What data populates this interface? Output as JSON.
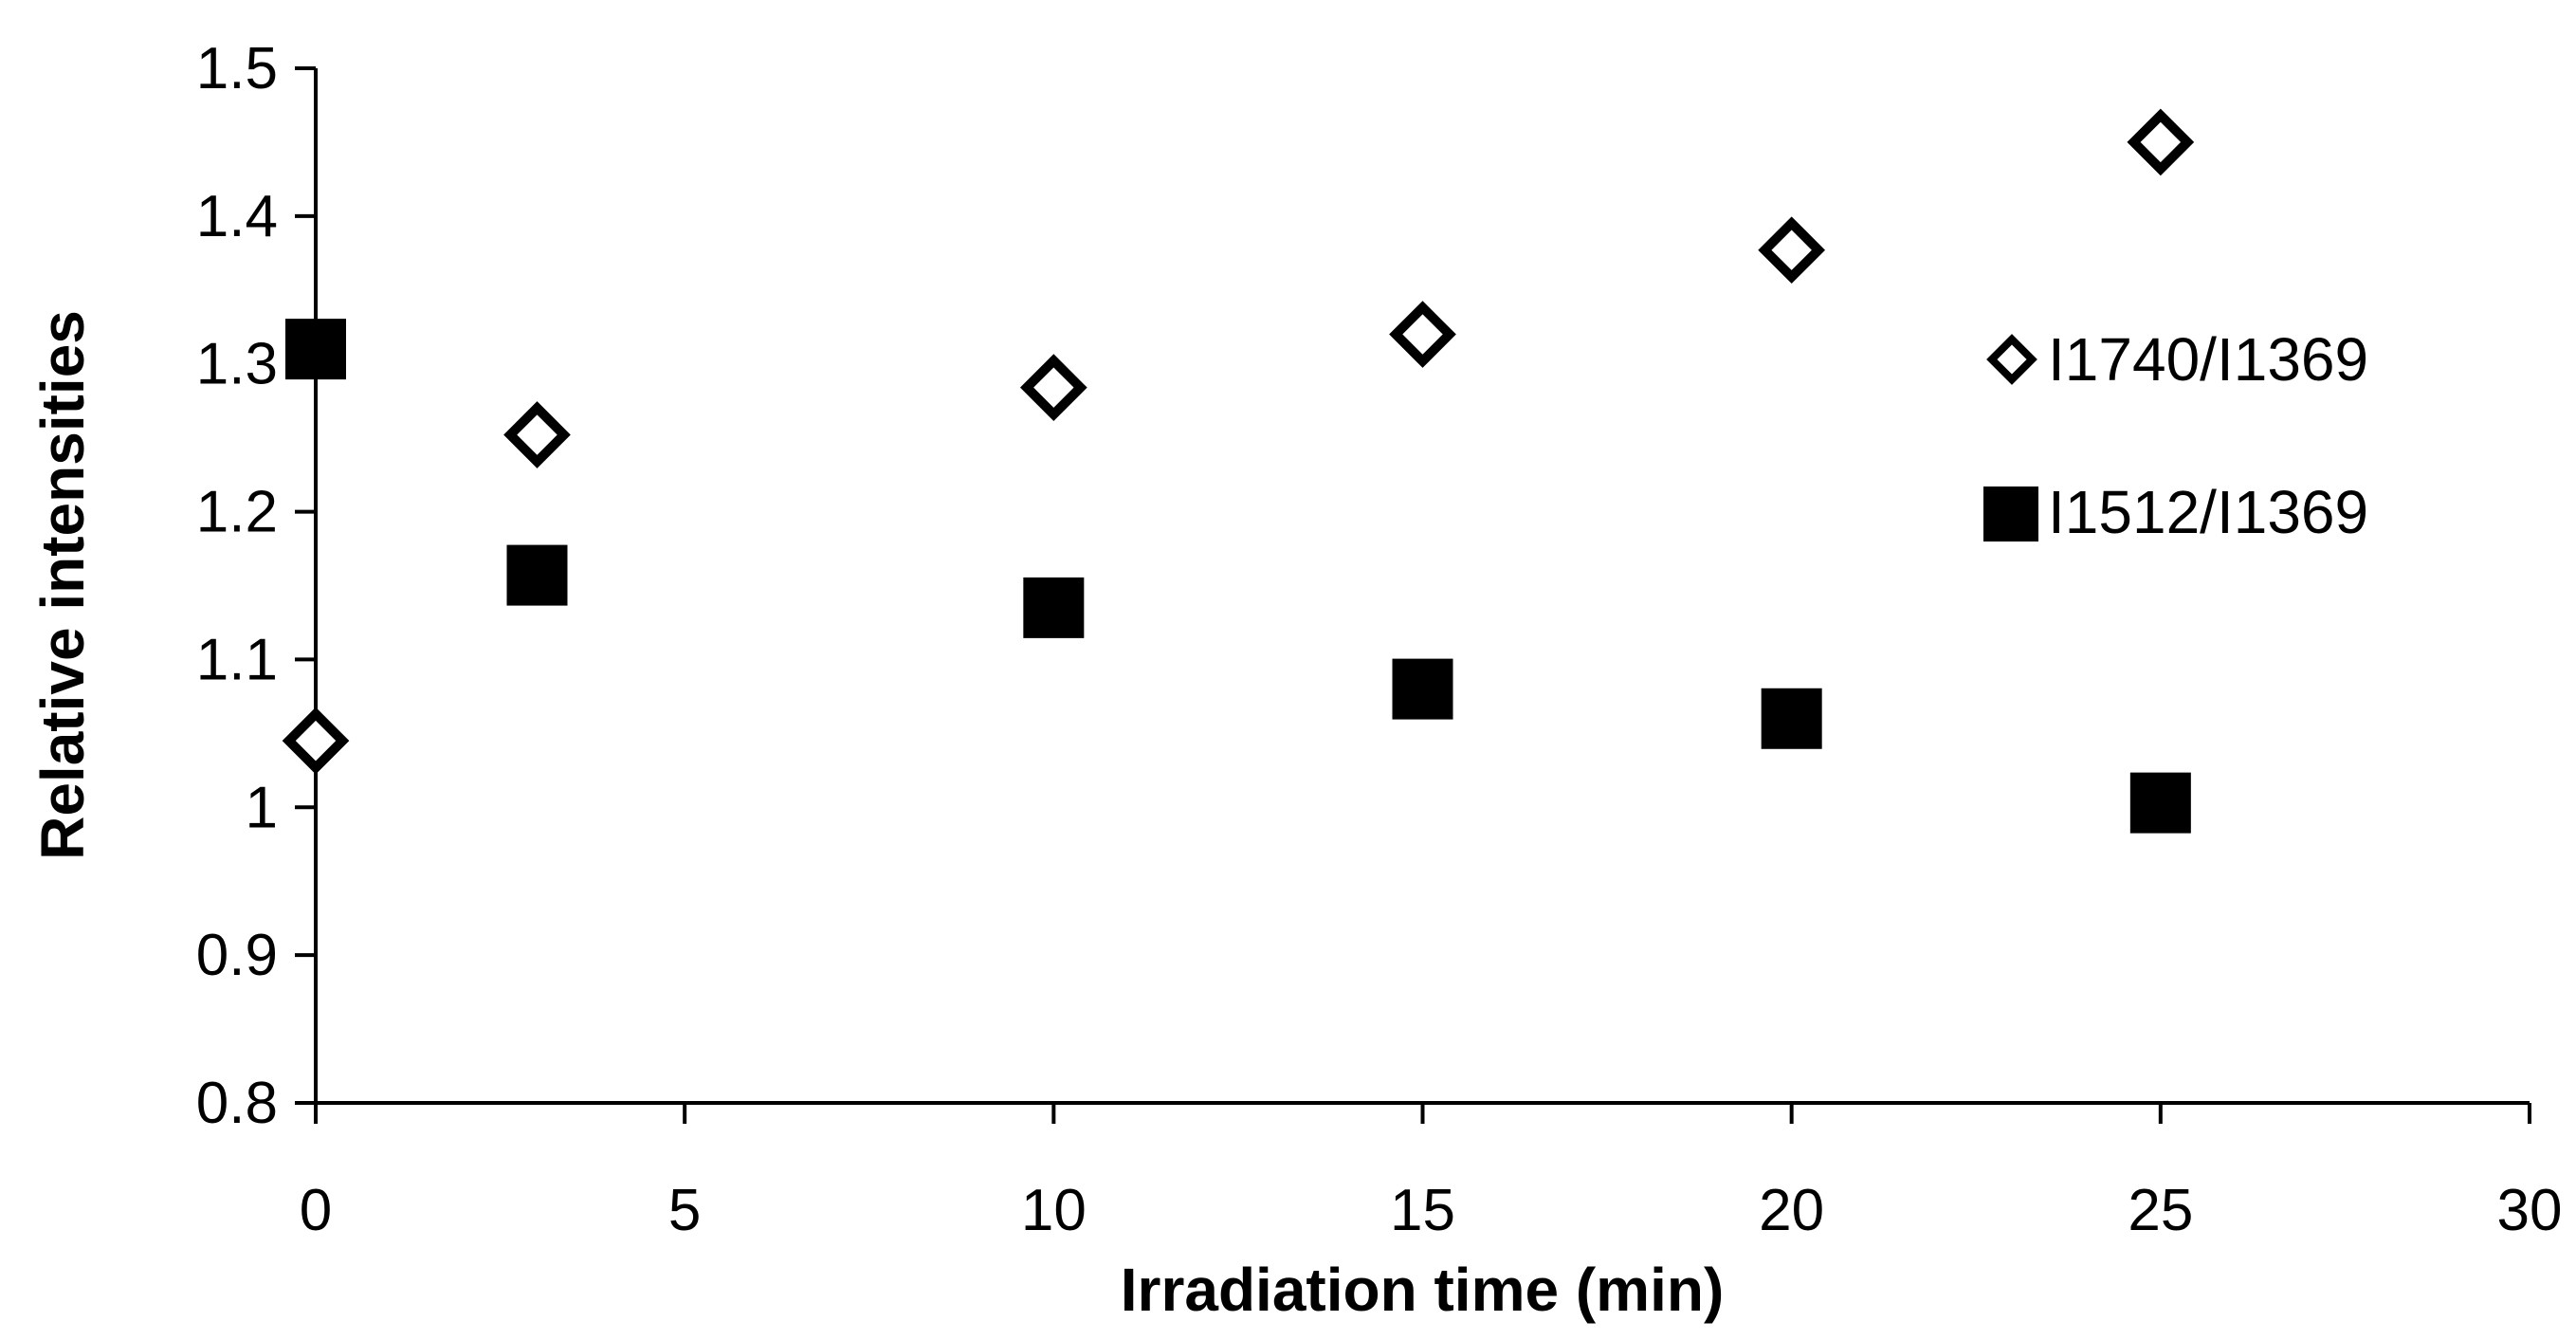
{
  "chart_data": {
    "type": "scatter",
    "title": "",
    "xlabel": "Irradiation time (min)",
    "ylabel": "Relative intensities",
    "xlim": [
      0,
      30
    ],
    "ylim": [
      0.8,
      1.5
    ],
    "xticks": [
      0,
      5,
      10,
      15,
      20,
      25,
      30
    ],
    "xtick_labels": [
      "0",
      "5",
      "10",
      "15",
      "20",
      "25",
      "30"
    ],
    "yticks": [
      0.8,
      0.9,
      1.0,
      1.1,
      1.2,
      1.3,
      1.4,
      1.5
    ],
    "ytick_labels": [
      "0.8",
      "0.9",
      "1",
      "1.1",
      "1.2",
      "1.3",
      "1.4",
      "1.5"
    ],
    "grid": false,
    "legend_position": "right",
    "series": [
      {
        "name": "I1740/I1369",
        "marker": "diamond-open",
        "color": "#000000",
        "x": [
          0,
          3,
          10,
          15,
          20,
          25
        ],
        "y": [
          1.045,
          1.252,
          1.284,
          1.32,
          1.377,
          1.45
        ]
      },
      {
        "name": "I1512/I1369",
        "marker": "square-filled",
        "color": "#000000",
        "x": [
          0,
          3,
          10,
          15,
          20,
          25
        ],
        "y": [
          1.31,
          1.157,
          1.135,
          1.08,
          1.06,
          1.003
        ]
      }
    ]
  }
}
